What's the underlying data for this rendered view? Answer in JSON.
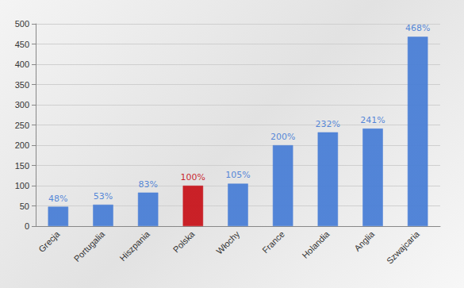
{
  "chart_data": {
    "type": "bar",
    "categories": [
      "Grecja",
      "Portugalia",
      "Hiszpania",
      "Polska",
      "Włochy",
      "France",
      "Holandia",
      "Anglia",
      "Szwajcaria"
    ],
    "values": [
      48,
      53,
      83,
      100,
      105,
      200,
      232,
      241,
      468
    ],
    "value_labels": [
      "48%",
      "53%",
      "83%",
      "100%",
      "105%",
      "200%",
      "232%",
      "241%",
      "468%"
    ],
    "colors": [
      "#4a7fd6",
      "#4a7fd6",
      "#4a7fd6",
      "#c8161d",
      "#4a7fd6",
      "#4a7fd6",
      "#4a7fd6",
      "#4a7fd6",
      "#4a7fd6"
    ],
    "ylim": [
      0,
      500
    ],
    "yticks": [
      0,
      50,
      100,
      150,
      200,
      250,
      300,
      350,
      400,
      450,
      500
    ],
    "grid": true,
    "data_labels": true
  }
}
